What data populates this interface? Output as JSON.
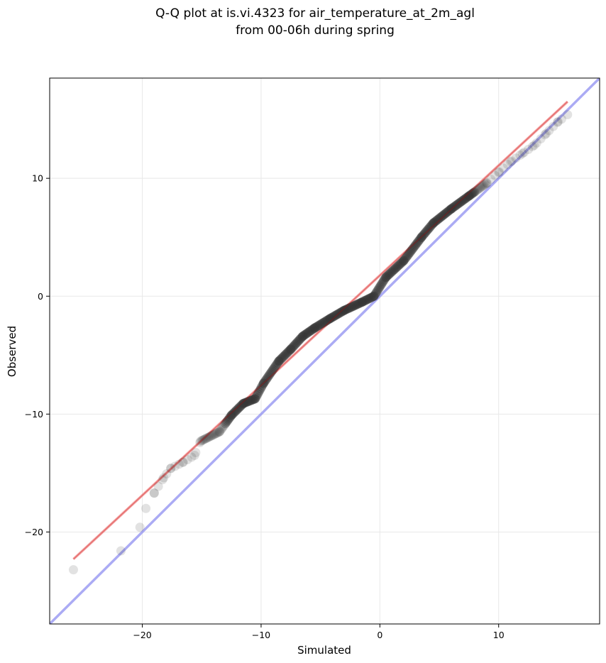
{
  "chart_data": {
    "type": "scatter",
    "title_line1": "Q-Q plot at is.vi.4323 for air_temperature_at_2m_agl",
    "title_line2": "from 00-06h during spring",
    "xlabel": "Simulated",
    "ylabel": "Observed",
    "xlim": [
      -27.8,
      18.5
    ],
    "ylim": [
      -27.8,
      18.5
    ],
    "xticks": [
      -20,
      -10,
      0,
      10
    ],
    "yticks": [
      -20,
      -10,
      0,
      10
    ],
    "xtick_labels": [
      "−20",
      "−10",
      "0",
      "10"
    ],
    "ytick_labels": [
      "−20",
      "−10",
      "0",
      "10"
    ],
    "grid": true,
    "colors": {
      "points": "#333333",
      "fit_line": "#f08080",
      "identity_line": "#8f8ff0",
      "grid": "#e8e8e8"
    },
    "fit_line": {
      "x": [
        -25.8,
        15.8
      ],
      "y": [
        -22.3,
        16.5
      ]
    },
    "identity_line": {
      "x": [
        -27.8,
        18.5
      ],
      "y": [
        -27.8,
        18.5
      ]
    },
    "quantile_curve": {
      "x": [
        -25.8,
        -21.8,
        -20.2,
        -19.7,
        -19,
        -18.2,
        -17.6,
        -16.6,
        -15.6,
        -15.1,
        -13.5,
        -12.5,
        -11.5,
        -10.5,
        -9.8,
        -8.5,
        -7.5,
        -6.5,
        -5.5,
        -4.2,
        -3.0,
        -1.5,
        -0.5,
        0.5,
        2.0,
        3.5,
        4.5,
        6.0,
        7.5,
        9.0,
        10.0,
        11.0,
        12.0,
        13.0,
        14.0,
        15.0,
        15.8
      ],
      "y": [
        -23.2,
        -21.6,
        -19.6,
        -18.0,
        -16.7,
        -15.4,
        -14.6,
        -14.1,
        -13.5,
        -12.3,
        -11.5,
        -10.1,
        -9.1,
        -8.7,
        -7.4,
        -5.5,
        -4.5,
        -3.4,
        -2.7,
        -1.9,
        -1.2,
        -0.5,
        0.0,
        1.6,
        3.0,
        5.0,
        6.2,
        7.4,
        8.5,
        9.6,
        10.5,
        11.4,
        12.1,
        12.8,
        13.8,
        14.8,
        15.4
      ]
    }
  }
}
